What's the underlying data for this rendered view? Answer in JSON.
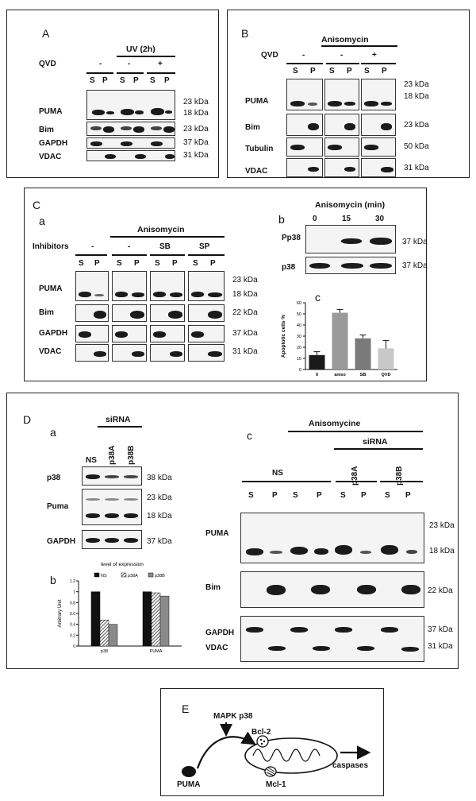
{
  "panelA": {
    "letter": "A",
    "uv_label": "UV (2h)",
    "qvd_label": "QVD",
    "qvd_values": [
      "-",
      "-",
      "+"
    ],
    "lanes": [
      "S",
      "P",
      "S",
      "P",
      "S",
      "P"
    ],
    "rows": [
      "PUMA",
      "Bim",
      "GAPDH",
      "VDAC"
    ],
    "kda": [
      "23 kDa",
      "18 kDa",
      "23 kDa",
      "37 kDa",
      "31 kDa"
    ]
  },
  "panelB": {
    "letter": "B",
    "treatment": "Anisomycin",
    "qvd_label": "QVD",
    "qvd_values": [
      "-",
      "-",
      "+"
    ],
    "lanes": [
      "S",
      "P",
      "S",
      "P",
      "S",
      "P"
    ],
    "rows": [
      "PUMA",
      "Bim",
      "Tubulin",
      "VDAC"
    ],
    "kda": [
      "23 kDa",
      "18 kDa",
      "23 kDa",
      "50 kDa",
      "31 kDa"
    ]
  },
  "panelC": {
    "letter": "C",
    "a": {
      "letter": "a",
      "treatment": "Anisomycin",
      "inhib_label": "Inhibitors",
      "inhib_values": [
        "-",
        "-",
        "SB",
        "SP"
      ],
      "lanes": [
        "S",
        "P",
        "S",
        "P",
        "S",
        "P",
        "S",
        "P"
      ],
      "rows": [
        "PUMA",
        "Bim",
        "GAPDH",
        "VDAC"
      ],
      "kda": [
        "23 kDa",
        "18 kDa",
        "22 kDa",
        "37 kDa",
        "31 kDa"
      ]
    },
    "b": {
      "letter": "b",
      "title": "Anisomycin  (min)",
      "times": [
        "0",
        "15",
        "30"
      ],
      "rows": [
        "Pp38",
        "p38"
      ],
      "kda": [
        "37 kDa",
        "37 kDa"
      ]
    },
    "c": {
      "letter": "c"
    }
  },
  "panelD": {
    "letter": "D",
    "a": {
      "letter": "a",
      "sirna_label": "siRNA",
      "lanes": [
        "NS",
        "p38A",
        "p38B"
      ],
      "rows": [
        "p38",
        "Puma",
        "GAPDH"
      ],
      "kda": [
        "38 kDa",
        "23 kDa",
        "18 kDa",
        "37 kDa"
      ]
    },
    "b": {
      "letter": "b"
    },
    "c": {
      "letter": "c",
      "treatment": "Anisomycine",
      "sirna_label": "siRNA",
      "groups": [
        "NS",
        "p38A",
        "p38B"
      ],
      "lanes": [
        "S",
        "P",
        "S",
        "P",
        "S",
        "P",
        "S",
        "P"
      ],
      "rows": [
        "PUMA",
        "Bim",
        "GAPDH",
        "VDAC"
      ],
      "kda": [
        "23 kDa",
        "18 kDa",
        "22 kDa",
        "37 kDa",
        "31 kDa"
      ]
    }
  },
  "panelE": {
    "letter": "E",
    "mapk": "MAPK p38",
    "puma": "PUMA",
    "bcl2": "Bcl-2",
    "mcl1": "Mcl-1",
    "caspases": "caspases"
  },
  "chart_data": [
    {
      "type": "bar",
      "categories": [
        "0",
        "aniso",
        "SB",
        "QVD"
      ],
      "values": [
        13,
        51,
        28,
        19
      ],
      "errors": [
        3,
        3,
        3,
        7
      ],
      "ylabel": "Apoptotic cells %",
      "ylim": [
        0,
        60
      ],
      "yticks": [
        0,
        10,
        20,
        30,
        40,
        50,
        60
      ],
      "colors": [
        "#1a1a1a",
        "#9a9a9a",
        "#7a7a7a",
        "#c8c8c8"
      ]
    },
    {
      "type": "bar",
      "title": "level of expression",
      "ylabel": "Arbitrary Unit",
      "ylim": [
        0,
        1.2
      ],
      "yticks": [
        "0",
        "0.2",
        "0.4",
        "0.6",
        "0.8",
        "1",
        "1.2"
      ],
      "categories": [
        "p38",
        "PUMA"
      ],
      "series": [
        {
          "name": "NS",
          "values": [
            1.0,
            1.0
          ]
        },
        {
          "name": "p38A",
          "values": [
            0.48,
            0.98
          ]
        },
        {
          "name": "p38B",
          "values": [
            0.4,
            0.92
          ]
        }
      ],
      "legend": "top"
    }
  ]
}
